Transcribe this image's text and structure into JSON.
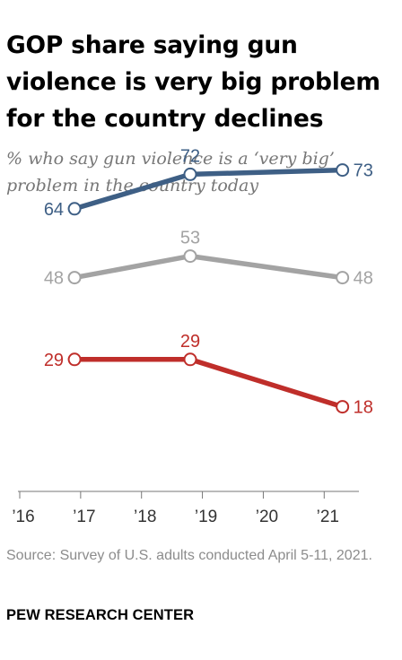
{
  "title": "GOP share saying gun violence is very big problem for the country declines",
  "subtitle": "% who say gun violence is a ‘very big’ problem in the country today",
  "source": "Source: Survey of U.S. adults conducted April 5-11, 2021.",
  "credit": "PEW RESEARCH CENTER",
  "chart_data": {
    "type": "line",
    "x_ticks": [
      "’16",
      "’17",
      "’18",
      "’19",
      "’20",
      "’21"
    ],
    "xlim": [
      2016,
      2021.6
    ],
    "ylim": [
      0,
      100
    ],
    "grid": false,
    "legend": "none",
    "x": [
      2016.9,
      2018.8,
      2021.3
    ],
    "series": [
      {
        "values": [
          64,
          72,
          73
        ],
        "color": "#3e5f85"
      },
      {
        "values": [
          48,
          53,
          48
        ],
        "color": "#a3a3a3"
      },
      {
        "values": [
          29,
          29,
          18
        ],
        "color": "#bf2e2a"
      }
    ]
  }
}
